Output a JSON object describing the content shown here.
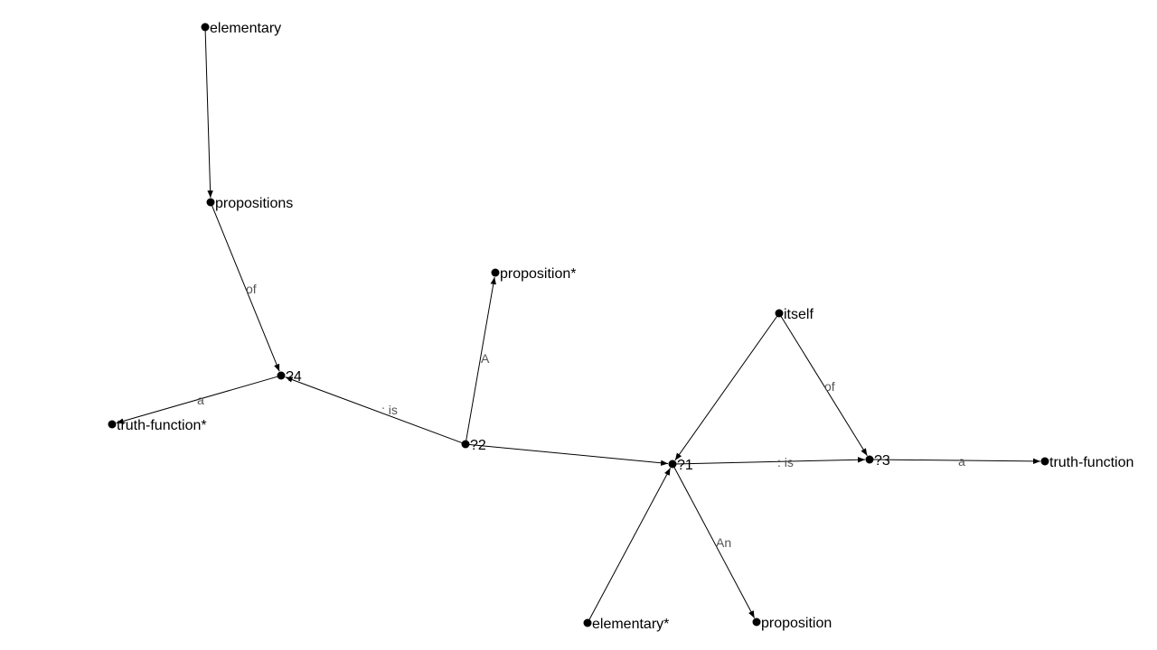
{
  "graph": {
    "nodes": [
      {
        "id": "elementary",
        "label": "elementary"
      },
      {
        "id": "propositions",
        "label": "propositions"
      },
      {
        "id": "q4",
        "label": "?4"
      },
      {
        "id": "truth_function_star",
        "label": "truth-function*"
      },
      {
        "id": "proposition_star",
        "label": "proposition*"
      },
      {
        "id": "q2",
        "label": "?2"
      },
      {
        "id": "itself",
        "label": "itself"
      },
      {
        "id": "q1",
        "label": "?1"
      },
      {
        "id": "q3",
        "label": "?3"
      },
      {
        "id": "truth_function",
        "label": "truth-function"
      },
      {
        "id": "elementary_star",
        "label": "elementary*"
      },
      {
        "id": "proposition",
        "label": "proposition"
      }
    ],
    "edges": [
      {
        "id": "e1",
        "from": "elementary",
        "to": "propositions",
        "label": ""
      },
      {
        "id": "e2",
        "from": "propositions",
        "to": "q4",
        "label": "of"
      },
      {
        "id": "e3",
        "from": "q4",
        "to": "truth_function_star",
        "label": "a"
      },
      {
        "id": "e4",
        "from": "q2",
        "to": "q4",
        "label": ": is"
      },
      {
        "id": "e5",
        "from": "q2",
        "to": "proposition_star",
        "label": "A"
      },
      {
        "id": "e6",
        "from": "q2",
        "to": "q1",
        "label": ""
      },
      {
        "id": "e7",
        "from": "itself",
        "to": "q1",
        "label": ""
      },
      {
        "id": "e8",
        "from": "itself",
        "to": "q3",
        "label": "of"
      },
      {
        "id": "e9",
        "from": "q1",
        "to": "q3",
        "label": ": is"
      },
      {
        "id": "e10",
        "from": "q3",
        "to": "truth_function",
        "label": "a"
      },
      {
        "id": "e11",
        "from": "elementary_star",
        "to": "q1",
        "label": ""
      },
      {
        "id": "e12",
        "from": "q1",
        "to": "proposition",
        "label": "An"
      }
    ]
  }
}
